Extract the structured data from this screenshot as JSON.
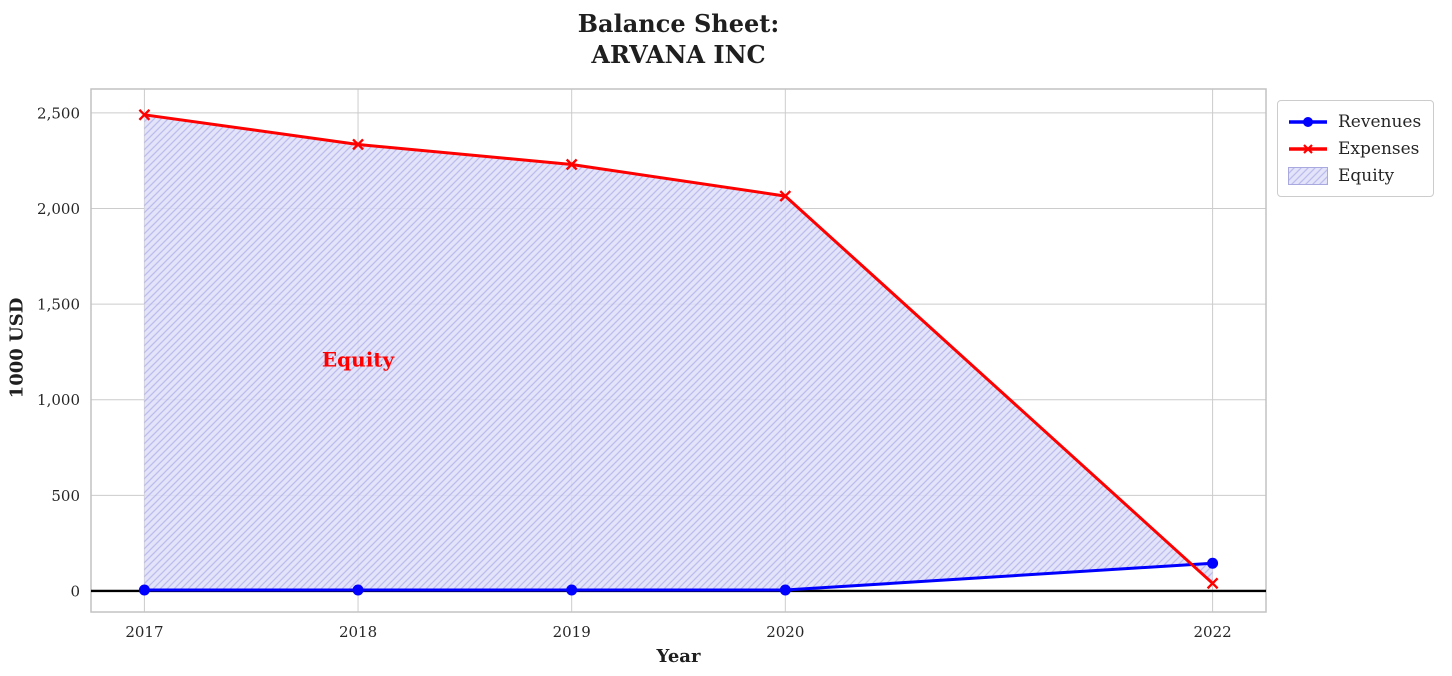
{
  "title": {
    "line1": "Balance Sheet:",
    "line2": "ARVANA INC"
  },
  "chart_data": {
    "type": "line",
    "x": [
      2017,
      2018,
      2019,
      2020,
      2022
    ],
    "x_tick_labels": [
      "2017",
      "2018",
      "2019",
      "2020",
      "2022"
    ],
    "y_ticks": [
      0,
      500,
      1000,
      1500,
      2000,
      2500
    ],
    "y_tick_labels": [
      "0",
      "500",
      "1,000",
      "1,500",
      "2,000",
      "2,500"
    ],
    "xlim": [
      2016.75,
      2022.25
    ],
    "ylim": [
      -110,
      2625
    ],
    "grid": true,
    "xlabel": "Year",
    "ylabel": "1000 USD",
    "series": [
      {
        "name": "Revenues",
        "color": "#0000ff",
        "marker": "circle",
        "values": [
          5,
          5,
          5,
          5,
          145
        ]
      },
      {
        "name": "Expenses",
        "color": "#ff0000",
        "marker": "x",
        "values": [
          2490,
          2335,
          2230,
          2065,
          40
        ]
      }
    ],
    "area": {
      "name": "Equity",
      "between": [
        "Revenues",
        "Expenses"
      ],
      "fill_color": "#dedef8",
      "hatch": "/",
      "hatch_color": "#9a9ae4"
    },
    "annotation": {
      "text": "Equity",
      "color": "#ff0000",
      "x": 2018,
      "y": 1175
    },
    "zero_line": {
      "show": true,
      "color": "#000000"
    },
    "legend": {
      "position": "outside-top-right",
      "entries": [
        {
          "label": "Revenues",
          "swatch": "line-circle",
          "color": "#0000ff"
        },
        {
          "label": "Expenses",
          "swatch": "line-x",
          "color": "#ff0000"
        },
        {
          "label": "Equity",
          "swatch": "hatch-patch",
          "color": "#ccccf2"
        }
      ]
    }
  },
  "style_colors": {
    "grid": "#cccccc",
    "spine": "#c2c2c2",
    "tick_label": "#262626",
    "title": "#1f1f1f"
  }
}
